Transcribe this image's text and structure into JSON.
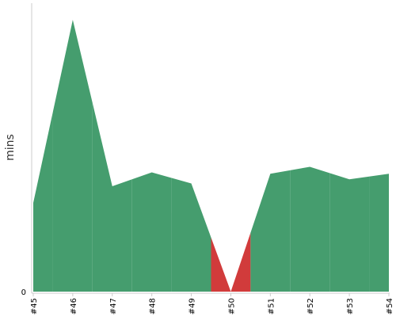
{
  "chart_data": {
    "type": "area",
    "title": "",
    "xlabel": "",
    "ylabel": "mins",
    "categories": [
      "#45",
      "#46",
      "#47",
      "#48",
      "#49",
      "#50",
      "#51",
      "#52",
      "#53",
      "#54"
    ],
    "values": [
      3.2,
      9.8,
      3.8,
      4.3,
      3.9,
      0,
      4.25,
      4.5,
      4.05,
      4.25
    ],
    "status": [
      "success",
      "success",
      "success",
      "success",
      "success",
      "failure",
      "success",
      "success",
      "success",
      "success"
    ],
    "y_ticks": [
      0
    ],
    "y_tick_labels": [
      "0"
    ],
    "ylim": [
      0,
      10.4
    ],
    "grid": false,
    "colors": {
      "success": "#459d6e",
      "failure": "#d13b3b",
      "axis": "#cccccc"
    }
  }
}
